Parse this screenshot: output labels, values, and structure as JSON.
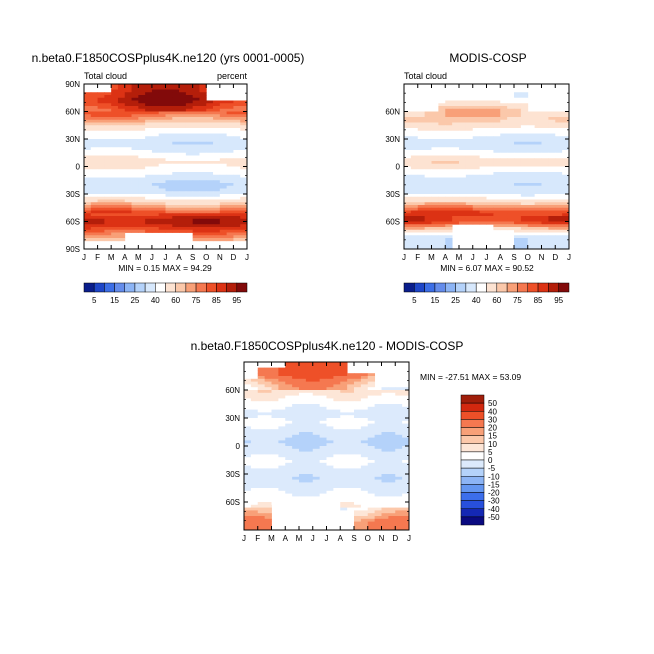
{
  "chart_data": [
    {
      "type": "heatmap",
      "title": "n.beta0.F1850COSPplus4K.ne120 (yrs 0001-0005)",
      "left_label": "Total cloud",
      "right_label": "percent",
      "x_ticks": [
        "J",
        "F",
        "M",
        "A",
        "M",
        "J",
        "J",
        "A",
        "S",
        "O",
        "N",
        "D",
        "J"
      ],
      "y_ticks": [
        "90N",
        "60N",
        "30N",
        "0",
        "30S",
        "60S",
        "90S"
      ],
      "stats": "MIN =   0.15 MAX =  94.29",
      "colorbar_labels": [
        "5",
        "15",
        "25",
        "40",
        "60",
        "75",
        "85",
        "95"
      ],
      "lat_profile": [
        {
          "lat": 85,
          "v": 82
        },
        {
          "lat": 72,
          "v": 88
        },
        {
          "lat": 60,
          "v": 78
        },
        {
          "lat": 48,
          "v": 62
        },
        {
          "lat": 38,
          "v": 45
        },
        {
          "lat": 25,
          "v": 32
        },
        {
          "lat": 15,
          "v": 42
        },
        {
          "lat": 5,
          "v": 55
        },
        {
          "lat": -8,
          "v": 42
        },
        {
          "lat": -18,
          "v": 30
        },
        {
          "lat": -28,
          "v": 33
        },
        {
          "lat": -38,
          "v": 58
        },
        {
          "lat": -50,
          "v": 78
        },
        {
          "lat": -60,
          "v": 89
        },
        {
          "lat": -70,
          "v": 78
        },
        {
          "lat": -82,
          "v": 60
        }
      ]
    },
    {
      "type": "heatmap",
      "title": "MODIS-COSP",
      "left_label": "Total cloud",
      "x_ticks": [
        "J",
        "F",
        "M",
        "A",
        "M",
        "J",
        "J",
        "A",
        "S",
        "O",
        "N",
        "D",
        "J"
      ],
      "y_ticks": [
        "60N",
        "30N",
        "0",
        "30S",
        "60S"
      ],
      "stats": "MIN =   6.07 MAX =  90.52",
      "colorbar_labels": [
        "5",
        "15",
        "25",
        "40",
        "60",
        "75",
        "85",
        "95"
      ],
      "lat_profile": [
        {
          "lat": 75,
          "v": 40
        },
        {
          "lat": 62,
          "v": 62
        },
        {
          "lat": 50,
          "v": 62
        },
        {
          "lat": 38,
          "v": 45
        },
        {
          "lat": 25,
          "v": 32
        },
        {
          "lat": 15,
          "v": 42
        },
        {
          "lat": 5,
          "v": 58
        },
        {
          "lat": -8,
          "v": 40
        },
        {
          "lat": -18,
          "v": 32
        },
        {
          "lat": -28,
          "v": 35
        },
        {
          "lat": -40,
          "v": 62
        },
        {
          "lat": -50,
          "v": 80
        },
        {
          "lat": -60,
          "v": 82
        },
        {
          "lat": -70,
          "v": 55
        },
        {
          "lat": -78,
          "v": 30
        }
      ]
    },
    {
      "type": "heatmap",
      "title": "n.beta0.F1850COSPplus4K.ne120 - MODIS-COSP",
      "x_ticks": [
        "J",
        "F",
        "M",
        "A",
        "M",
        "J",
        "J",
        "A",
        "S",
        "O",
        "N",
        "D",
        "J"
      ],
      "y_ticks": [
        "60N",
        "30N",
        "0",
        "30S",
        "60S"
      ],
      "stats": "MIN = -27.51 MAX =  53.09",
      "colorbar_labels": [
        "50",
        "40",
        "30",
        "20",
        "15",
        "10",
        "5",
        "0",
        "-5",
        "-10",
        "-15",
        "-20",
        "-30",
        "-40",
        "-50"
      ],
      "lat_profile": [
        {
          "lat": 78,
          "v": 28
        },
        {
          "lat": 68,
          "v": 15
        },
        {
          "lat": 58,
          "v": 8
        },
        {
          "lat": 45,
          "v": 2
        },
        {
          "lat": 35,
          "v": -3
        },
        {
          "lat": 25,
          "v": 1
        },
        {
          "lat": 15,
          "v": -3
        },
        {
          "lat": 5,
          "v": -6
        },
        {
          "lat": -5,
          "v": -3
        },
        {
          "lat": -15,
          "v": 1
        },
        {
          "lat": -25,
          "v": -2
        },
        {
          "lat": -35,
          "v": -4
        },
        {
          "lat": -45,
          "v": -2
        },
        {
          "lat": -55,
          "v": 2
        },
        {
          "lat": -65,
          "v": 4
        },
        {
          "lat": -75,
          "v": 12
        },
        {
          "lat": -82,
          "v": 20
        }
      ]
    }
  ],
  "colors": {
    "cloud_scale": [
      "#0a1e8c",
      "#1e46c8",
      "#3c6ee6",
      "#648ceb",
      "#8cb4f5",
      "#b4d2fa",
      "#d7e8fc",
      "#ffffff",
      "#fde3d2",
      "#fbc8aa",
      "#f8a078",
      "#f57850",
      "#ee5028",
      "#dc3214",
      "#b41e0a",
      "#820a0a"
    ],
    "diff_scale": [
      "#0a0a80",
      "#1428b4",
      "#2850dc",
      "#3c6eeb",
      "#6496f0",
      "#8cb4f5",
      "#b4d2fa",
      "#dceafc",
      "#ffffff",
      "#fde6d7",
      "#fcc8aa",
      "#f8a078",
      "#f57850",
      "#ee5028",
      "#d2280f",
      "#a01e0a"
    ]
  }
}
